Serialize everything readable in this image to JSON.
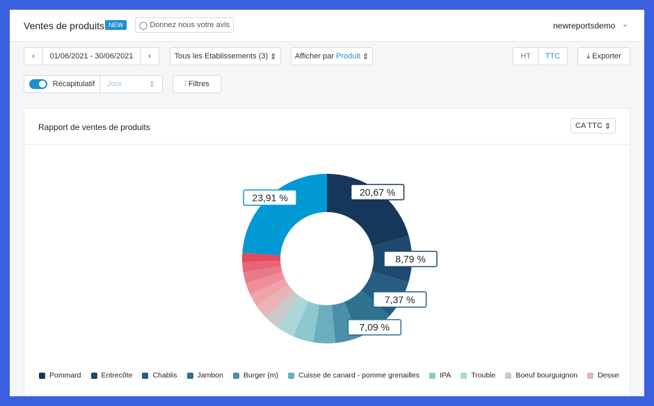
{
  "header": {
    "title": "Ventes de produits",
    "badge": "NEW",
    "feedback": "Donnez nous votre avis",
    "user": "newreportsdemo"
  },
  "toolbar": {
    "date_range": "01/06/2021 - 30/06/2021",
    "establishments": "Tous les Etablissements (3)",
    "display_by": "Afficher par",
    "display_value": "Produit",
    "ht": "HT",
    "ttc": "TTC",
    "export": "Exporter",
    "summary": "Récapitulatif",
    "period": "Jour",
    "filters": "Filtres"
  },
  "card": {
    "title": "Rapport de ventes de produits",
    "metric": "CA TTC"
  },
  "chart_data": {
    "type": "pie",
    "donut": true,
    "categories": [
      "Pommard",
      "Entrecôte",
      "Chablis",
      "Jambon",
      "Burger (m)",
      "Cuisse de canard - pomme grenailles",
      "IPA",
      "Trouble",
      "Boeuf bourguignon",
      "Dessert du jo",
      null,
      null,
      null,
      null,
      null,
      null
    ],
    "values": [
      20.67,
      8.79,
      7.37,
      7.09,
      4.5,
      4.2,
      3.9,
      3.4,
      2.9,
      2.7,
      2.5,
      2.3,
      2.1,
      1.9,
      1.77,
      23.91
    ],
    "value_labels": [
      "20,67 %",
      "8,79 %",
      "7,37 %",
      "7,09 %",
      null,
      null,
      null,
      null,
      null,
      null,
      null,
      null,
      null,
      null,
      null,
      "23,91 %"
    ],
    "colors": [
      "#16365a",
      "#1d4a6e",
      "#265d80",
      "#2f7290",
      "#4a8fab",
      "#6aaebf",
      "#8ec8cf",
      "#acd6da",
      "#c9c9ca",
      "#e8b4b6",
      "#f0a3aa",
      "#ee8e99",
      "#eb7a88",
      "#e86577",
      "#e44a5e",
      "#0099d4"
    ],
    "legend_position": "bottom"
  }
}
